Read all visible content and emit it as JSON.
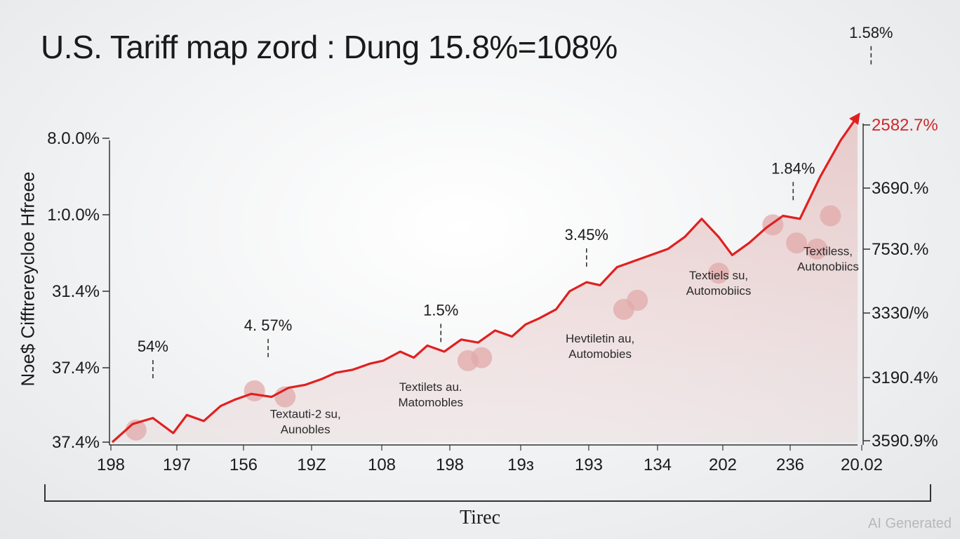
{
  "chart_data": {
    "type": "area",
    "title": "U.S. Tariff map zord :  Dung 15.8%=108%",
    "ylabel": "Nɔe$  Cifftrereycloe  Hfreee",
    "xlabel": "Tirec",
    "x_ticks": [
      "198",
      "197",
      "156",
      "19Z",
      "108",
      "198",
      "19ɜ",
      "193",
      "134",
      "202",
      "236",
      "20.02"
    ],
    "y_ticks_left": [
      "8.0.0%",
      "1:0.0%",
      "31.4%",
      "37.4%",
      "37.4%"
    ],
    "y_ticks_right": [
      "2582.7%",
      "3690.%",
      "7530.%",
      "3330/%",
      "3190.4%",
      "3590.9%"
    ],
    "right_top_tick_color": "#cc2a2a",
    "line_color": "#e02020",
    "fill_color": "#e8c9c9",
    "x_range": [
      0,
      11
    ],
    "y_range": [
      0,
      100
    ],
    "series": [
      {
        "x": [
          0,
          0.3,
          0.6,
          0.9,
          1.1,
          1.35,
          1.6,
          1.8,
          2.05,
          2.35,
          2.6,
          2.85,
          3.1,
          3.3,
          3.55,
          3.8,
          4.0,
          4.25,
          4.45,
          4.65,
          4.9,
          5.15,
          5.4,
          5.65,
          5.9,
          6.1,
          6.3,
          6.55,
          6.75,
          7.0,
          7.2,
          7.45,
          7.7,
          7.95,
          8.2,
          8.45,
          8.7,
          8.95,
          9.15,
          9.4,
          9.65,
          9.9,
          10.15,
          10.45,
          10.75,
          11.0
        ],
        "y": [
          0,
          6,
          8,
          3,
          9,
          7,
          12,
          14,
          16,
          15,
          18,
          19,
          21,
          23,
          24,
          26,
          27,
          30,
          28,
          32,
          30,
          34,
          33,
          37,
          35,
          39,
          41,
          44,
          50,
          53,
          52,
          58,
          60,
          62,
          64,
          68,
          74,
          68,
          62,
          66,
          71,
          75,
          74,
          88,
          100,
          108
        ]
      }
    ],
    "markers": [
      {
        "x": 0.35,
        "y": 4
      },
      {
        "x": 2.1,
        "y": 17
      },
      {
        "x": 2.55,
        "y": 15
      },
      {
        "x": 5.25,
        "y": 27
      },
      {
        "x": 5.45,
        "y": 28
      },
      {
        "x": 7.55,
        "y": 44
      },
      {
        "x": 7.75,
        "y": 47
      },
      {
        "x": 8.95,
        "y": 56
      },
      {
        "x": 9.75,
        "y": 72
      },
      {
        "x": 10.1,
        "y": 66
      },
      {
        "x": 10.4,
        "y": 64
      },
      {
        "x": 10.6,
        "y": 75
      }
    ],
    "annotations": [
      {
        "value": "54%",
        "x": 0.6,
        "y": 30
      },
      {
        "value": "4. 57%",
        "x": 2.3,
        "y": 37
      },
      {
        "value": "1.5%",
        "x": 4.85,
        "y": 42
      },
      {
        "value": "3.45%",
        "x": 7.0,
        "y": 67
      },
      {
        "value": "1.84%",
        "x": 10.05,
        "y": 89
      },
      {
        "value": "1.58%",
        "x": 11.2,
        "y": 134
      }
    ],
    "category_labels": [
      {
        "line1": "Textauti-2 su,",
        "line2": "Aunobles",
        "x": 2.85,
        "y": 8
      },
      {
        "line1": "Textilets au.",
        "line2": "Matomobles",
        "x": 4.7,
        "y": 17
      },
      {
        "line1": "Hevtiletin au,",
        "line2": "Automobies",
        "x": 7.2,
        "y": 33
      },
      {
        "line1": "Textiels su,",
        "line2": "Automobiics",
        "x": 8.95,
        "y": 54
      },
      {
        "line1": "Textiless,",
        "line2": "Autonobiics",
        "x": 10.65,
        "y": 62
      }
    ],
    "grid": false,
    "legend": "none"
  },
  "watermark": "AI Generated"
}
